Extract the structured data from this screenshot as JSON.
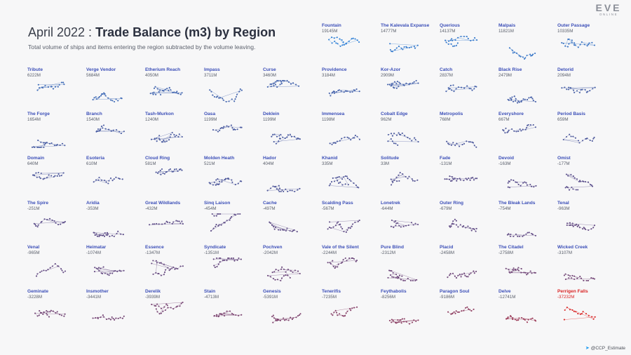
{
  "header": {
    "title_prefix": "April 2022 : ",
    "title_main": "Trade Balance (m3) by Region",
    "subtitle": "Total volume of ships and items entering the region subtracted by the volume leaving."
  },
  "logo": {
    "main": "EVE",
    "sub": "ONLINE"
  },
  "footer": {
    "twitter_icon": "twitter-bird-icon",
    "handle": "@CCP_Estimate"
  },
  "colors": {
    "positive_strong": "#2d7fd6",
    "neutral": "#55508f",
    "negative_strong": "#d92323",
    "label": "#3c4fb8"
  },
  "chart_data": {
    "type": "small-multiples",
    "title": "Trade Balance (m3) by Region",
    "unit": "M",
    "regions": [
      {
        "name": "Fountain",
        "value": "19145M"
      },
      {
        "name": "The Kalevala Expanse",
        "value": "14777M"
      },
      {
        "name": "Querious",
        "value": "14137M"
      },
      {
        "name": "Malpais",
        "value": "11821M"
      },
      {
        "name": "Outer Passage",
        "value": "10335M"
      },
      {
        "name": "Tribute",
        "value": "6222M"
      },
      {
        "name": "Verge Vendor",
        "value": "5684M"
      },
      {
        "name": "Etherium Reach",
        "value": "4050M"
      },
      {
        "name": "Impass",
        "value": "3711M"
      },
      {
        "name": "Curse",
        "value": "3460M"
      },
      {
        "name": "Providence",
        "value": "3184M"
      },
      {
        "name": "Kor-Azor",
        "value": "2909M"
      },
      {
        "name": "Catch",
        "value": "2837M"
      },
      {
        "name": "Black Rise",
        "value": "2479M"
      },
      {
        "name": "Detorid",
        "value": "2094M"
      },
      {
        "name": "The Forge",
        "value": "1654M"
      },
      {
        "name": "Branch",
        "value": "1540M"
      },
      {
        "name": "Tash-Murkon",
        "value": "1240M"
      },
      {
        "name": "Oasa",
        "value": "1199M"
      },
      {
        "name": "Deklein",
        "value": "1199M"
      },
      {
        "name": "Immensea",
        "value": "1198M"
      },
      {
        "name": "Cobalt Edge",
        "value": "962M"
      },
      {
        "name": "Metropolis",
        "value": "768M"
      },
      {
        "name": "Everyshore",
        "value": "667M"
      },
      {
        "name": "Period Basis",
        "value": "659M"
      },
      {
        "name": "Domain",
        "value": "640M"
      },
      {
        "name": "Esoteria",
        "value": "610M"
      },
      {
        "name": "Cloud Ring",
        "value": "581M"
      },
      {
        "name": "Molden Heath",
        "value": "521M"
      },
      {
        "name": "Hador",
        "value": "404M"
      },
      {
        "name": "Khanid",
        "value": "335M"
      },
      {
        "name": "Solitude",
        "value": "33M"
      },
      {
        "name": "Fade",
        "value": "-131M"
      },
      {
        "name": "Devoid",
        "value": "-163M"
      },
      {
        "name": "Omist",
        "value": "-177M"
      },
      {
        "name": "The Spire",
        "value": "-251M"
      },
      {
        "name": "Aridia",
        "value": "-353M"
      },
      {
        "name": "Great Wildlands",
        "value": "-432M"
      },
      {
        "name": "Sinq Laison",
        "value": "-454M"
      },
      {
        "name": "Cache",
        "value": "-497M"
      },
      {
        "name": "Scalding Pass",
        "value": "-567M"
      },
      {
        "name": "Lonetrek",
        "value": "-644M"
      },
      {
        "name": "Outer Ring",
        "value": "-679M"
      },
      {
        "name": "The Bleak Lands",
        "value": "-754M"
      },
      {
        "name": "Tenal",
        "value": "-963M"
      },
      {
        "name": "Venal",
        "value": "-965M"
      },
      {
        "name": "Heimatar",
        "value": "-1074M"
      },
      {
        "name": "Essence",
        "value": "-1347M"
      },
      {
        "name": "Syndicate",
        "value": "-1351M"
      },
      {
        "name": "Pochven",
        "value": "-2042M"
      },
      {
        "name": "Vale of the Silent",
        "value": "-2244M"
      },
      {
        "name": "Pure Blind",
        "value": "-2312M"
      },
      {
        "name": "Placid",
        "value": "-2458M"
      },
      {
        "name": "The Citadel",
        "value": "-2758M"
      },
      {
        "name": "Wicked Creek",
        "value": "-3107M"
      },
      {
        "name": "Geminate",
        "value": "-3228M"
      },
      {
        "name": "Insmother",
        "value": "-3441M"
      },
      {
        "name": "Derelik",
        "value": "-3939M"
      },
      {
        "name": "Stain",
        "value": "-4713M"
      },
      {
        "name": "Genesis",
        "value": "-5391M"
      },
      {
        "name": "Tenerifis",
        "value": "-7235M"
      },
      {
        "name": "Feythabolis",
        "value": "-8256M"
      },
      {
        "name": "Paragon Soul",
        "value": "-9186M"
      },
      {
        "name": "Delve",
        "value": "-12741M"
      },
      {
        "name": "Perrigen Falls",
        "value": "-37232M"
      }
    ]
  }
}
